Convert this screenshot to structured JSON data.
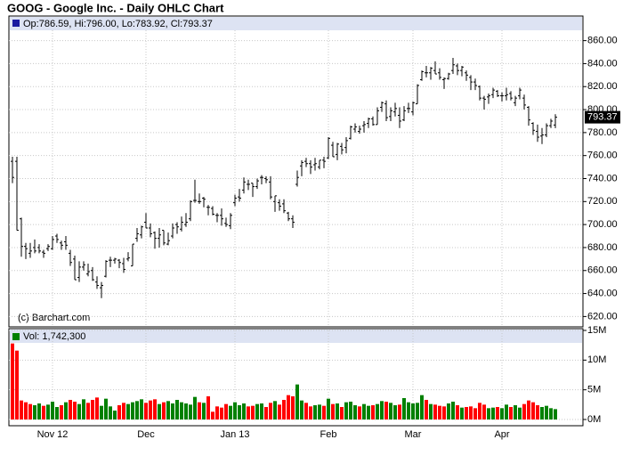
{
  "chart_data": [
    {
      "type": "ohlc",
      "title": "GOOG - Google Inc. - Daily OHLC Chart",
      "legend": "Op:786.59, Hi:796.00, Lo:783.92, Cl:793.37",
      "annotation": "(c) Barchart.com",
      "last_label": "793.37",
      "color": "#000000",
      "grid": true,
      "ylim": [
        611,
        869
      ],
      "yticks": [
        {
          "value": 620,
          "label": "620.00"
        },
        {
          "value": 640,
          "label": "640.00"
        },
        {
          "value": 660,
          "label": "660.00"
        },
        {
          "value": 680,
          "label": "680.00"
        },
        {
          "value": 700,
          "label": "700.00"
        },
        {
          "value": 720,
          "label": "720.00"
        },
        {
          "value": 740,
          "label": "740.00"
        },
        {
          "value": 760,
          "label": "760.00"
        },
        {
          "value": 780,
          "label": "780.00"
        },
        {
          "value": 800,
          "label": "800.00"
        },
        {
          "value": 820,
          "label": "820.00"
        },
        {
          "value": 840,
          "label": "840.00"
        },
        {
          "value": 860,
          "label": "860.00"
        }
      ],
      "open": [
        755,
        755,
        705,
        681,
        675,
        680,
        680,
        676,
        679,
        679,
        690,
        684,
        685,
        675,
        670,
        654,
        663,
        657,
        660,
        650,
        645,
        655,
        669,
        669,
        669,
        666,
        670,
        664,
        688,
        691,
        702,
        697,
        693,
        688,
        695,
        683,
        690,
        700,
        696,
        700,
        705,
        721,
        720,
        723,
        715,
        714,
        708,
        708,
        701,
        699,
        719,
        724,
        730,
        735,
        736,
        733,
        741,
        740,
        737,
        720,
        719,
        718,
        710,
        705,
        735,
        751,
        755,
        753,
        752,
        750,
        756,
        758,
        769,
        761,
        768,
        767,
        775,
        783,
        781,
        786,
        788,
        792,
        787,
        802,
        805,
        794,
        798,
        795,
        791,
        801,
        798,
        805,
        826,
        832,
        832,
        834,
        832,
        826,
        827,
        834,
        838,
        834,
        832,
        828,
        824,
        820,
        810,
        811,
        813,
        816,
        812,
        812,
        814,
        806,
        812,
        810,
        802,
        788,
        781,
        777,
        778,
        786,
        786.59
      ],
      "high": [
        759,
        759,
        706,
        684,
        684,
        687,
        683,
        678,
        683,
        690,
        692,
        686,
        690,
        678,
        673,
        668,
        668,
        666,
        663,
        655,
        650,
        669,
        672,
        671,
        670,
        671,
        676,
        683,
        697,
        699,
        710,
        701,
        694,
        697,
        695,
        693,
        701,
        702,
        707,
        710,
        721,
        739,
        727,
        724,
        717,
        716,
        710,
        714,
        706,
        710,
        726,
        731,
        741,
        739,
        736,
        740,
        743,
        742,
        742,
        725,
        722,
        722,
        711,
        708,
        747,
        756,
        758,
        756,
        758,
        756,
        759,
        776,
        772,
        771,
        771,
        776,
        786,
        788,
        786,
        790,
        793,
        794,
        802,
        807,
        808,
        802,
        806,
        802,
        803,
        806,
        807,
        822,
        834,
        838,
        837,
        842,
        836,
        828,
        832,
        845,
        840,
        838,
        834,
        830,
        827,
        821,
        812,
        814,
        819,
        817,
        815,
        819,
        816,
        812,
        819,
        813,
        803,
        789,
        787,
        784,
        788,
        792,
        796
      ],
      "low": [
        736,
        695,
        672,
        670,
        671,
        675,
        675,
        671,
        677,
        678,
        684,
        678,
        678,
        664,
        652,
        650,
        660,
        655,
        651,
        644,
        636,
        654,
        663,
        666,
        662,
        658,
        668,
        664,
        685,
        688,
        697,
        689,
        679,
        680,
        682,
        682,
        688,
        692,
        694,
        698,
        703,
        719,
        718,
        715,
        708,
        708,
        702,
        699,
        698,
        696,
        716,
        720,
        727,
        730,
        724,
        731,
        735,
        736,
        722,
        711,
        712,
        710,
        703,
        697,
        733,
        742,
        750,
        744,
        747,
        748,
        749,
        757,
        759,
        756,
        761,
        762,
        774,
        780,
        779,
        780,
        784,
        786,
        787,
        798,
        790,
        790,
        794,
        784,
        790,
        797,
        795,
        805,
        825,
        828,
        826,
        831,
        826,
        818,
        826,
        831,
        830,
        829,
        825,
        817,
        817,
        808,
        800,
        805,
        810,
        811,
        807,
        808,
        808,
        803,
        809,
        800,
        786,
        778,
        772,
        770,
        776,
        784,
        783.92
      ],
      "close": [
        741,
        695,
        681,
        679,
        677,
        677,
        677,
        675,
        681,
        687,
        687,
        682,
        682,
        667,
        652,
        663,
        665,
        659,
        652,
        647,
        647,
        668,
        669,
        670,
        667,
        661,
        671,
        683,
        692,
        698,
        697,
        692,
        688,
        691,
        684,
        686,
        697,
        698,
        702,
        702,
        720,
        721,
        720,
        722,
        715,
        709,
        708,
        705,
        700,
        708,
        723,
        723,
        737,
        735,
        733,
        738,
        741,
        739,
        724,
        725,
        716,
        712,
        705,
        702,
        741,
        754,
        753,
        750,
        753,
        756,
        755,
        775,
        759,
        770,
        765,
        773,
        785,
        785,
        783,
        787,
        792,
        787,
        799,
        806,
        793,
        799,
        801,
        790,
        799,
        801,
        806,
        821,
        833,
        832,
        836,
        831,
        828,
        827,
        831,
        839,
        834,
        837,
        830,
        824,
        821,
        810,
        809,
        812,
        817,
        812,
        812,
        813,
        810,
        810,
        817,
        804,
        791,
        782,
        776,
        778,
        786,
        790,
        793.37
      ]
    },
    {
      "type": "volume",
      "legend": "Vol: 1,742,300",
      "up_color": "#008000",
      "down_color": "#ff0000",
      "grid": true,
      "ylim": [
        -1,
        15
      ],
      "yticks": [
        {
          "value": 0,
          "label": "0M"
        },
        {
          "value": 5,
          "label": "5M"
        },
        {
          "value": 10,
          "label": "10M"
        },
        {
          "value": 15,
          "label": "15M"
        }
      ],
      "categories": [
        null,
        null,
        null,
        null,
        null,
        null,
        null,
        null,
        null,
        "Nov 12",
        null,
        null,
        null,
        null,
        null,
        null,
        null,
        null,
        null,
        null,
        null,
        null,
        null,
        null,
        null,
        null,
        null,
        null,
        null,
        null,
        "Dec",
        null,
        null,
        null,
        null,
        null,
        null,
        null,
        null,
        null,
        null,
        null,
        null,
        null,
        null,
        null,
        null,
        null,
        null,
        null,
        "Jan 13",
        null,
        null,
        null,
        null,
        null,
        null,
        null,
        null,
        null,
        null,
        null,
        null,
        null,
        null,
        null,
        null,
        null,
        null,
        null,
        null,
        "Feb",
        null,
        null,
        null,
        null,
        null,
        null,
        null,
        null,
        null,
        null,
        null,
        null,
        null,
        null,
        null,
        null,
        null,
        null,
        "Mar",
        null,
        null,
        null,
        null,
        null,
        null,
        null,
        null,
        null,
        null,
        null,
        null,
        null,
        null,
        null,
        null,
        null,
        null,
        null,
        "Apr",
        null,
        null,
        null,
        null,
        null,
        null,
        null,
        null,
        null,
        null,
        null,
        null
      ],
      "values": [
        12.8,
        11.6,
        3.2,
        2.9,
        2.6,
        2.4,
        2.7,
        2.3,
        2.5,
        3.0,
        2.1,
        2.4,
        2.9,
        3.3,
        3.0,
        2.6,
        3.4,
        2.8,
        3.3,
        3.7,
        2.3,
        3.5,
        2.2,
        1.5,
        2.4,
        2.8,
        2.6,
        2.9,
        3.1,
        3.4,
        2.8,
        3.2,
        3.4,
        2.6,
        2.9,
        3.1,
        2.7,
        3.3,
        2.9,
        2.7,
        2.5,
        3.8,
        2.9,
        2.8,
        3.9,
        1.3,
        2.2,
        2.0,
        2.6,
        2.3,
        2.9,
        2.4,
        2.7,
        2.2,
        2.3,
        2.6,
        2.7,
        2.1,
        2.8,
        3.1,
        2.5,
        3.3,
        4.1,
        3.9,
        5.9,
        3.2,
        2.8,
        2.2,
        2.4,
        2.5,
        2.3,
        3.5,
        2.6,
        2.7,
        2.1,
        2.9,
        3.0,
        2.4,
        2.2,
        2.6,
        2.3,
        2.4,
        2.6,
        3.1,
        3.0,
        2.8,
        2.4,
        2.5,
        3.6,
        2.9,
        2.7,
        2.8,
        4.1,
        3.3,
        2.6,
        2.5,
        2.3,
        2.2,
        2.7,
        3.0,
        2.4,
        2.0,
        2.1,
        2.2,
        1.9,
        2.8,
        2.5,
        1.9,
        2.0,
        2.1,
        1.9,
        2.5,
        2.1,
        2.4,
        2.0,
        2.6,
        3.2,
        2.9,
        2.4,
        2.1,
        2.3,
        1.9,
        1.7423
      ]
    }
  ]
}
